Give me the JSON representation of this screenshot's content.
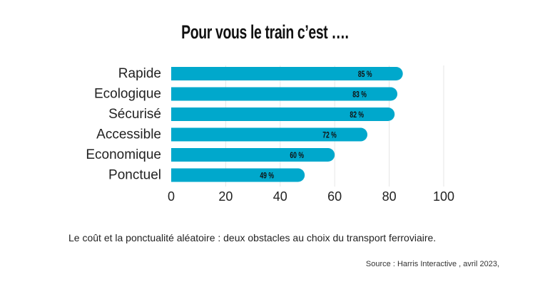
{
  "chart_data": {
    "type": "bar",
    "orientation": "horizontal",
    "title": "Pour vous le train c’est ….",
    "categories": [
      "Rapide",
      "Ecologique",
      "Sécurisé",
      "Accessible",
      "Economique",
      "Ponctuel"
    ],
    "values": [
      85,
      83,
      82,
      72,
      60,
      49
    ],
    "data_labels": [
      "85 %",
      "83 %",
      "82 %",
      "72 %",
      "60 %",
      "49 %"
    ],
    "x_ticks": [
      0,
      20,
      40,
      60,
      80,
      100
    ],
    "xlim": [
      0,
      100
    ],
    "grid": true,
    "bar_color": "#00a8cc",
    "grid_color": "#e6e6e6"
  },
  "caption": "Le coût et la ponctualité aléatoire : deux obstacles au choix du transport ferroviaire.",
  "source": "Source : Harris Interactive , avril 2023,"
}
